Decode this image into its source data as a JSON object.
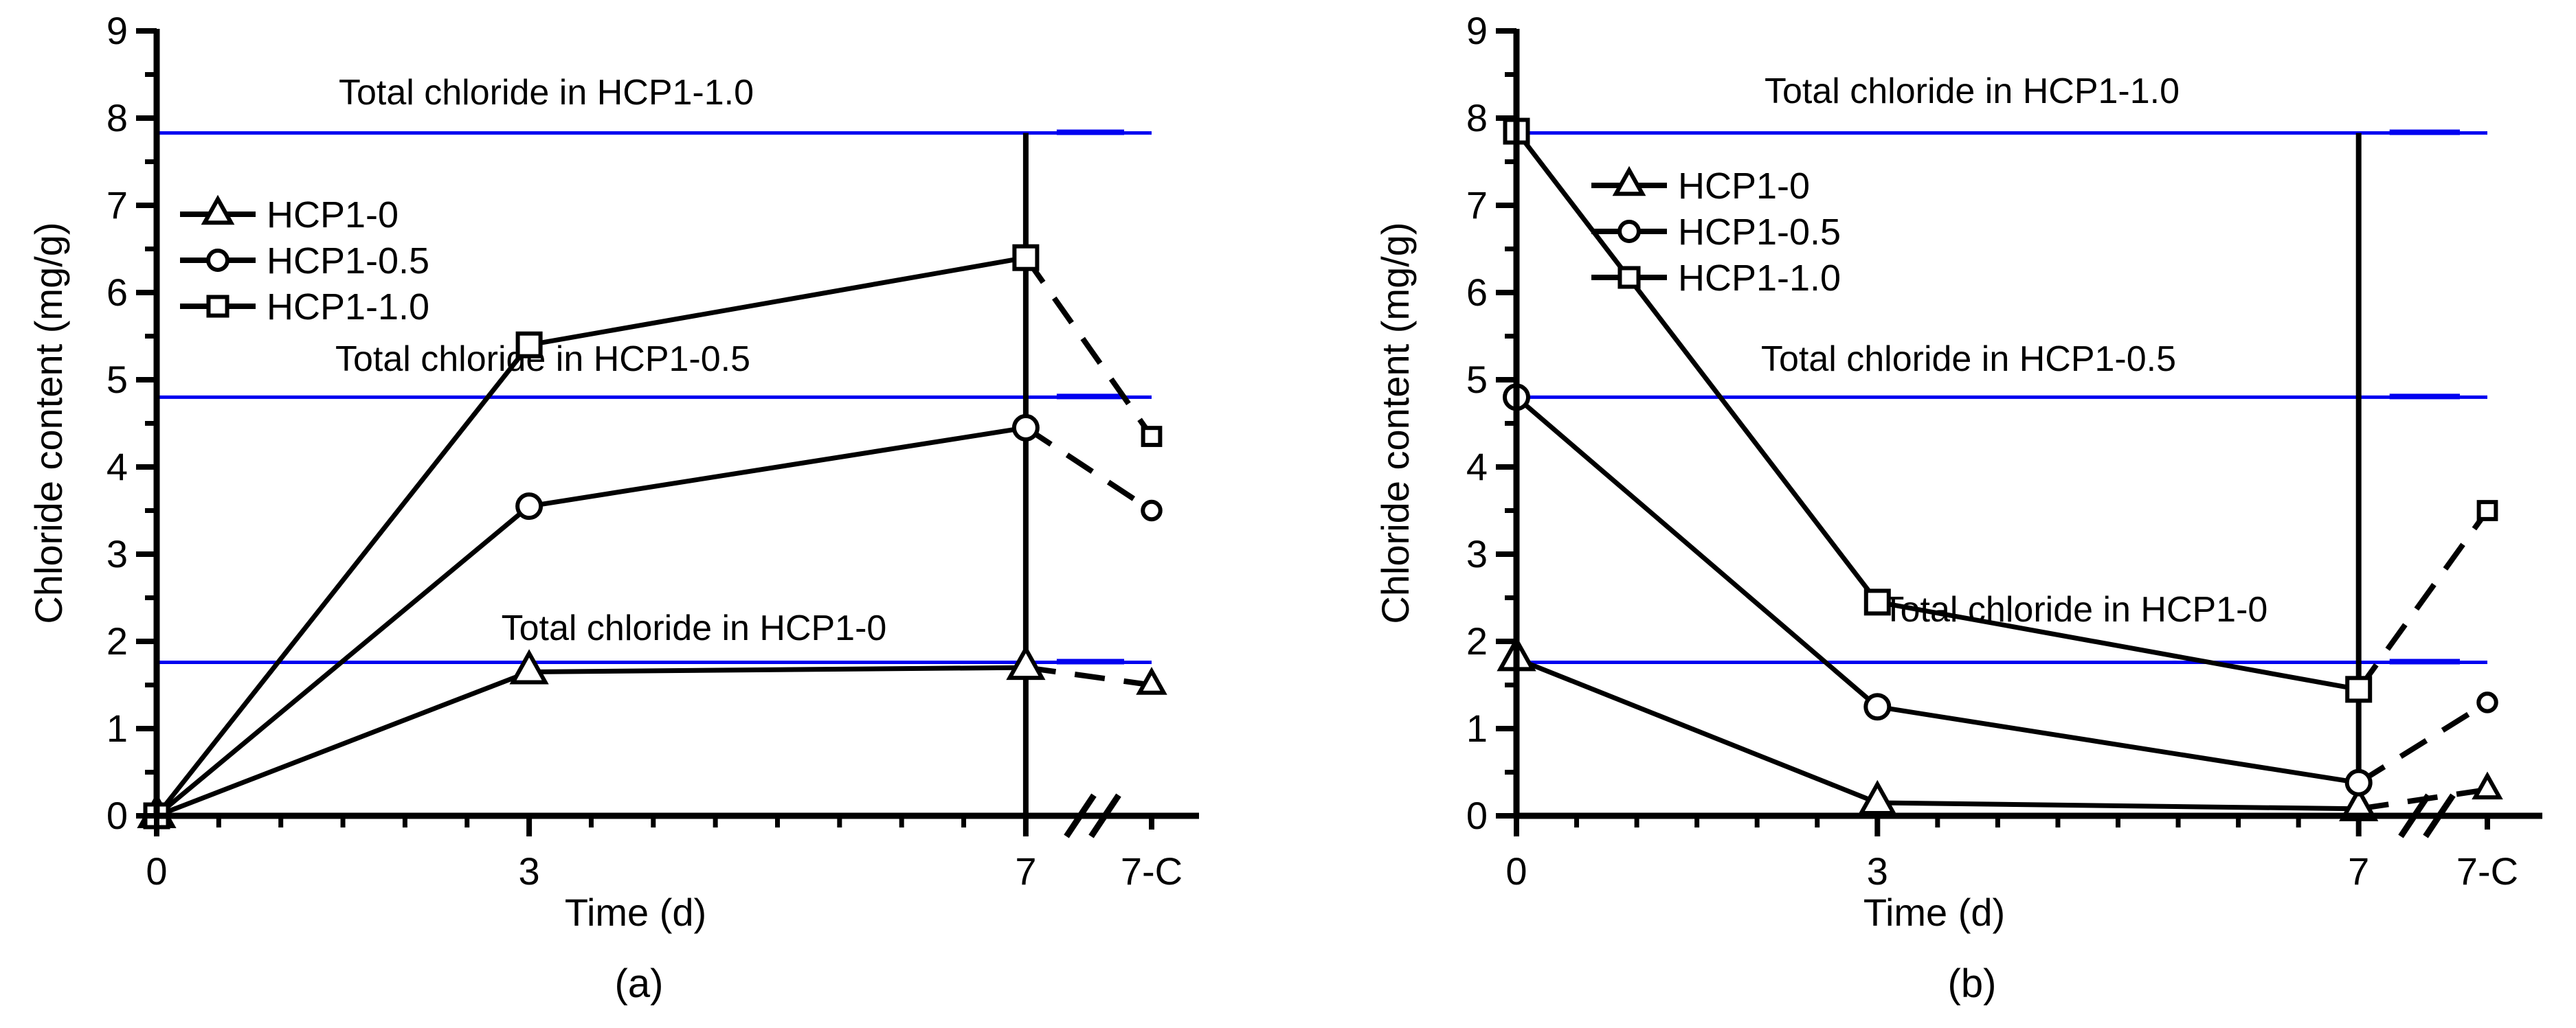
{
  "figure": {
    "background": "#ffffff",
    "description": "Two-panel line chart of chloride content vs time for three hardened cement paste samples, with blue horizontal total-chloride reference lines and an x-axis break before the 7-C condition."
  },
  "colors": {
    "series_line": "#000000",
    "total_chloride_line": "#0101f0",
    "marker_fill": "#ffffff",
    "axis": "#000000"
  },
  "chart_data": [
    {
      "type": "line",
      "panel_label": "(a)",
      "xlabel": "Time (d)",
      "ylabel": "Chloride content (mg/g)",
      "x_tick_labels": [
        "0",
        "3",
        "7",
        "7-C"
      ],
      "x_numeric_days": [
        0,
        3,
        7
      ],
      "x_axis_break_before_last": true,
      "ylim": [
        0,
        9
      ],
      "y_major_tick_step": 1,
      "y_minor_tick_step": 0.5,
      "x_minor_tick_step_days": 0.5,
      "legend_position": "upper-left-inside",
      "grid": false,
      "vertical_marker_line_at_day": 7,
      "series": [
        {
          "name": "HCP1-0",
          "marker": "triangle",
          "values": [
            0,
            1.65,
            1.7,
            1.5
          ],
          "dashed_last_segment": true
        },
        {
          "name": "HCP1-0.5",
          "marker": "circle",
          "values": [
            0,
            3.55,
            4.45,
            3.5
          ],
          "dashed_last_segment": true
        },
        {
          "name": "HCP1-1.0",
          "marker": "square",
          "values": [
            0,
            5.4,
            6.4,
            4.35
          ],
          "dashed_last_segment": true
        }
      ],
      "reference_lines": [
        {
          "label": "Total chloride in HCP1-1.0",
          "value": 7.83
        },
        {
          "label": "Total chloride in HCP1-0.5",
          "value": 4.8
        },
        {
          "label": "Total chloride in HCP1-0",
          "value": 1.76
        }
      ]
    },
    {
      "type": "line",
      "panel_label": "(b)",
      "xlabel": "Time (d)",
      "ylabel": "Chloride content (mg/g)",
      "x_tick_labels": [
        "0",
        "3",
        "7",
        "7-C"
      ],
      "x_numeric_days": [
        0,
        3,
        7
      ],
      "x_axis_break_before_last": true,
      "ylim": [
        0,
        9
      ],
      "y_major_tick_step": 1,
      "y_minor_tick_step": 0.5,
      "x_minor_tick_step_days": 0.5,
      "legend_position": "upper-left-inside",
      "grid": false,
      "vertical_marker_line_at_day": 7,
      "series": [
        {
          "name": "HCP1-0",
          "marker": "triangle",
          "values": [
            1.8,
            0.15,
            0.08,
            0.3
          ],
          "dashed_last_segment": true
        },
        {
          "name": "HCP1-0.5",
          "marker": "circle",
          "values": [
            4.8,
            1.25,
            0.38,
            1.3
          ],
          "dashed_last_segment": true
        },
        {
          "name": "HCP1-1.0",
          "marker": "square",
          "values": [
            7.85,
            2.45,
            1.45,
            3.5
          ],
          "dashed_last_segment": true
        }
      ],
      "reference_lines": [
        {
          "label": "Total chloride in HCP1-1.0",
          "value": 7.83
        },
        {
          "label": "Total chloride in HCP1-0.5",
          "value": 4.8
        },
        {
          "label": "Total chloride in HCP1-0",
          "value": 1.76
        }
      ]
    }
  ]
}
